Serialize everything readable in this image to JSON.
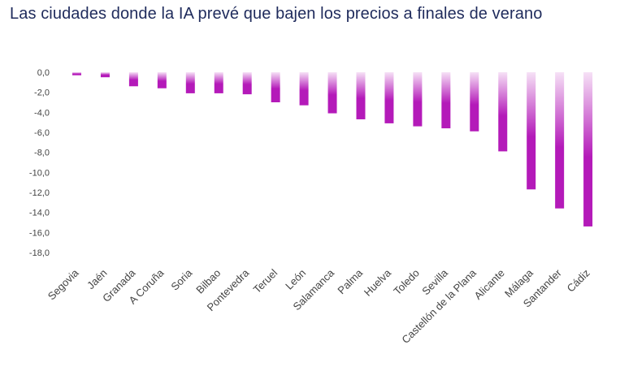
{
  "title": "Las ciudades donde la IA prevé que bajen los precios a finales de verano",
  "colors": {
    "bar_dark": "#b41ab9",
    "bar_light": "#f6e1f6",
    "title": "#1f2b5c"
  },
  "chart_data": {
    "type": "bar",
    "title": "Las ciudades donde la IA prevé que bajen los precios a finales de verano",
    "xlabel": "",
    "ylabel": "",
    "ylim": [
      -18,
      0
    ],
    "yticks": [
      "0,0",
      "-2,0",
      "-4,0",
      "-6,0",
      "-8,0",
      "-10,0",
      "-12,0",
      "-14,0",
      "-16,0",
      "-18,0"
    ],
    "grid": false,
    "categories": [
      "Segovia",
      "Jaén",
      "Granada",
      "A Coruña",
      "Soria",
      "Bilbao",
      "Pontevedra",
      "Teruel",
      "León",
      "Salamanca",
      "Palma",
      "Huelva",
      "Toledo",
      "Sevilla",
      "Castellón de la Plana",
      "Alicante",
      "Málaga",
      "Santander",
      "Cádiz"
    ],
    "values": [
      -0.3,
      -0.5,
      -1.4,
      -1.6,
      -2.1,
      -2.1,
      -2.2,
      -3.0,
      -3.3,
      -4.1,
      -4.7,
      -5.1,
      -5.4,
      -5.6,
      -5.9,
      -7.9,
      -11.7,
      -13.6,
      -15.4
    ]
  }
}
